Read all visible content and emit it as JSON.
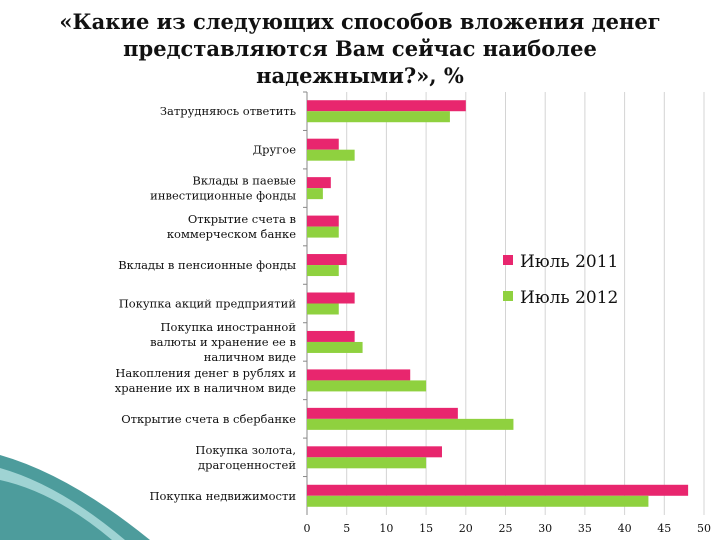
{
  "chart_data": {
    "type": "bar",
    "orientation": "horizontal",
    "title": "«Какие из следующих способов вложения денег представляются Вам сейчас наиболее надежными?», %",
    "categories": [
      "Затрудняюсь ответить",
      "Другое",
      "Вклады в паевые инвестиционные фонды",
      "Открытие счета в коммерческом банке",
      "Вклады в пенсионные фонды",
      "Покупка акций предприятий",
      "Покупка иностранной валюты и хранение ее в наличном виде",
      "Накопления денег в рублях и хранение их в наличном виде",
      "Открытие счета в сбербанке",
      "Покупка золота, драгоценностей",
      "Покупка недвижимости"
    ],
    "series": [
      {
        "name": "Июль 2011",
        "color": "#E8266E",
        "values": [
          20,
          4,
          3,
          4,
          5,
          6,
          6,
          13,
          19,
          17,
          48
        ]
      },
      {
        "name": "Июль 2012",
        "color": "#8FD13F",
        "values": [
          18,
          6,
          2,
          4,
          4,
          4,
          7,
          15,
          26,
          15,
          43
        ]
      }
    ],
    "xlim": [
      0,
      50
    ],
    "xticks": [
      "0",
      "5",
      "10",
      "15",
      "20",
      "25",
      "30",
      "35",
      "40",
      "45",
      "50"
    ],
    "grid": true,
    "legend": "right"
  }
}
